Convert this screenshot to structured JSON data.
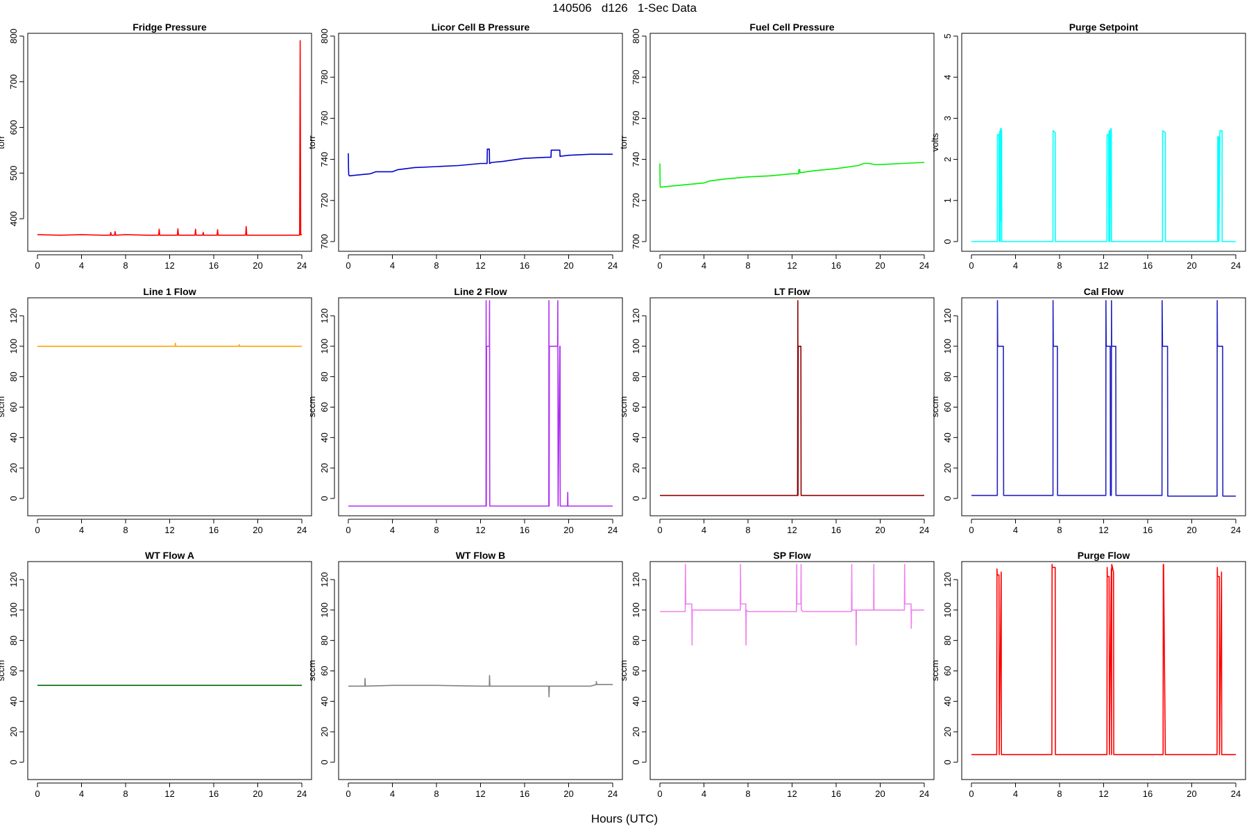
{
  "figure": {
    "title": "140506   d126   1-Sec Data",
    "xlabel": "Hours (UTC)"
  },
  "chart_data": [
    {
      "type": "line",
      "title": "Fridge Pressure",
      "ylabel": "torr",
      "color": "#ff0000",
      "xlim": [
        0,
        24
      ],
      "ylim": [
        350,
        800
      ],
      "xticks": [
        0,
        4,
        8,
        12,
        16,
        20,
        24
      ],
      "yticks": [
        400,
        500,
        600,
        700,
        800
      ],
      "x": [
        0,
        2,
        4,
        6,
        6.6,
        6.65,
        6.7,
        7,
        7.05,
        7.1,
        8,
        10,
        11,
        11.05,
        11.1,
        12,
        12.7,
        12.75,
        12.8,
        14,
        14.3,
        14.35,
        14.4,
        15,
        15.05,
        15.1,
        16,
        16.3,
        16.35,
        16.4,
        18,
        18.9,
        18.95,
        19,
        22,
        23.8,
        23.85,
        23.9,
        24
      ],
      "y": [
        365,
        364,
        365,
        364,
        364,
        370,
        364,
        364,
        372,
        364,
        365,
        364,
        364,
        377,
        364,
        364,
        364,
        378,
        364,
        364,
        364,
        377,
        364,
        364,
        370,
        364,
        364,
        364,
        376,
        364,
        364,
        364,
        383,
        364,
        364,
        364,
        790,
        365,
        365
      ]
    },
    {
      "type": "line",
      "title": "Licor Cell B Pressure",
      "ylabel": "torr",
      "color": "#0000cc",
      "xlim": [
        0,
        24
      ],
      "ylim": [
        700,
        800
      ],
      "xticks": [
        0,
        4,
        8,
        12,
        16,
        20,
        24
      ],
      "yticks": [
        700,
        720,
        740,
        760,
        780,
        800
      ],
      "x": [
        0,
        0.02,
        0.04,
        0.1,
        2,
        2.5,
        4,
        4.5,
        6,
        8,
        10,
        12,
        12.6,
        12.62,
        12.64,
        12.8,
        12.82,
        13,
        14,
        16,
        18,
        18.4,
        18.42,
        19.2,
        19.22,
        20,
        22,
        24
      ],
      "y": [
        743,
        735,
        732.5,
        732,
        733,
        734,
        734,
        735,
        736,
        736.5,
        737,
        738,
        738,
        745,
        745,
        745,
        738,
        738.5,
        739,
        740.5,
        741,
        741,
        744.5,
        744.5,
        741.5,
        742,
        742.5,
        742.5
      ]
    },
    {
      "type": "line",
      "title": "Fuel Cell Pressure",
      "ylabel": "torr",
      "color": "#00ee00",
      "xlim": [
        0,
        24
      ],
      "ylim": [
        700,
        800
      ],
      "xticks": [
        0,
        4,
        8,
        12,
        16,
        20,
        24
      ],
      "yticks": [
        700,
        720,
        740,
        760,
        780,
        800
      ],
      "x": [
        0,
        0.02,
        0.04,
        0.1,
        2,
        4,
        4.5,
        6,
        8,
        10,
        12,
        12.6,
        12.62,
        12.7,
        12.72,
        14,
        16,
        18,
        18.5,
        19,
        19.5,
        20,
        22,
        24
      ],
      "y": [
        738,
        728,
        726.5,
        726.5,
        727.5,
        728.5,
        729.5,
        730.5,
        731.5,
        732,
        733,
        733,
        735,
        735,
        733.5,
        734.5,
        735.5,
        737,
        738,
        738,
        737.5,
        737.5,
        738,
        738.5
      ]
    },
    {
      "type": "line",
      "title": "Purge Setpoint",
      "ylabel": "volts",
      "color": "#00ffff",
      "xlim": [
        0,
        24
      ],
      "ylim": [
        0,
        5
      ],
      "xticks": [
        0,
        4,
        8,
        12,
        16,
        20,
        24
      ],
      "yticks": [
        0,
        1,
        2,
        3,
        4,
        5
      ],
      "x": [
        0,
        2.35,
        2.36,
        2.5,
        2.52,
        2.56,
        2.6,
        2.62,
        2.64,
        2.7,
        2.72,
        2.74,
        2.75,
        7.4,
        7.41,
        7.6,
        7.61,
        12.3,
        12.31,
        12.45,
        12.47,
        12.5,
        12.55,
        12.57,
        12.65,
        12.67,
        12.7,
        12.71,
        17.35,
        17.36,
        17.6,
        17.61,
        22.35,
        22.36,
        22.45,
        22.47,
        22.55,
        22.57,
        22.75,
        22.76,
        24
      ],
      "y": [
        0,
        0,
        2.6,
        2.6,
        0,
        2.65,
        2.7,
        0,
        2.75,
        2.75,
        0.5,
        2.7,
        0,
        0,
        2.7,
        2.65,
        0,
        0,
        2.6,
        2.6,
        0,
        2.7,
        2.7,
        0,
        2.75,
        2.75,
        2.7,
        0,
        0,
        2.7,
        2.65,
        0,
        0,
        2.55,
        2.55,
        0,
        2.6,
        2.7,
        2.7,
        0,
        0
      ]
    },
    {
      "type": "line",
      "title": "Line 1 Flow",
      "ylabel": "sccm",
      "color": "#ffa500",
      "xlim": [
        0,
        24
      ],
      "ylim": [
        -5,
        130
      ],
      "xticks": [
        0,
        4,
        8,
        12,
        16,
        20,
        24
      ],
      "yticks": [
        0,
        20,
        40,
        60,
        80,
        100,
        120
      ],
      "x": [
        0,
        4,
        8,
        12,
        12.5,
        12.52,
        12.55,
        14,
        18,
        18.3,
        18.32,
        18.35,
        20,
        24
      ],
      "y": [
        100,
        100,
        100,
        100,
        100,
        102,
        100,
        100,
        100,
        100,
        101,
        100,
        100,
        100
      ]
    },
    {
      "type": "line",
      "title": "Line 2 Flow",
      "ylabel": "sccm",
      "color": "#b030f0",
      "xlim": [
        0,
        24
      ],
      "ylim": [
        -5,
        130
      ],
      "xticks": [
        0,
        4,
        8,
        12,
        16,
        20,
        24
      ],
      "yticks": [
        0,
        20,
        40,
        60,
        80,
        100,
        120
      ],
      "x": [
        0,
        12.5,
        12.51,
        12.53,
        12.55,
        12.8,
        12.82,
        12.84,
        13,
        18.2,
        18.21,
        18.23,
        18.25,
        19,
        19.02,
        19.04,
        19.2,
        19.22,
        19.24,
        19.9,
        19.92,
        19.94,
        24
      ],
      "y": [
        -5,
        -5,
        130,
        -5,
        100,
        100,
        130,
        -5,
        -5,
        -5,
        130,
        -5,
        100,
        100,
        130,
        -5,
        100,
        100,
        -5,
        -5,
        4,
        -5,
        -5
      ]
    },
    {
      "type": "line",
      "title": "LT Flow",
      "ylabel": "sccm",
      "color": "#8b0000",
      "xlim": [
        0,
        24
      ],
      "ylim": [
        -5,
        130
      ],
      "xticks": [
        0,
        4,
        8,
        12,
        16,
        20,
        24
      ],
      "yticks": [
        0,
        20,
        40,
        60,
        80,
        100,
        120
      ],
      "x": [
        0,
        12.5,
        12.52,
        12.54,
        12.56,
        12.8,
        12.82,
        13,
        20,
        24
      ],
      "y": [
        2,
        2,
        130,
        2,
        100,
        100,
        2,
        2,
        2,
        2
      ]
    },
    {
      "type": "line",
      "title": "Cal Flow",
      "ylabel": "sccm",
      "color": "#2020c0",
      "xlim": [
        0,
        24
      ],
      "ylim": [
        -5,
        130
      ],
      "xticks": [
        0,
        4,
        8,
        12,
        16,
        20,
        24
      ],
      "yticks": [
        0,
        20,
        40,
        60,
        80,
        100,
        120
      ],
      "x": [
        0,
        2.35,
        2.36,
        2.38,
        2.4,
        2.9,
        2.92,
        3,
        7.4,
        7.41,
        7.43,
        7.45,
        7.8,
        7.82,
        7.9,
        12.2,
        12.21,
        12.23,
        12.25,
        12.6,
        12.62,
        12.7,
        12.71,
        12.73,
        12.75,
        13.1,
        13.12,
        13.3,
        17.3,
        17.31,
        17.35,
        17.4,
        17.8,
        17.82,
        18,
        22.3,
        22.31,
        22.33,
        22.35,
        22.8,
        22.82,
        23,
        24
      ],
      "y": [
        2,
        2,
        130,
        102,
        100,
        100,
        2,
        2,
        2,
        130,
        100,
        100,
        100,
        2,
        2,
        2,
        130,
        102,
        100,
        100,
        2,
        2,
        130,
        100,
        100,
        100,
        2,
        2,
        2,
        130,
        100,
        100,
        100,
        1.5,
        1.5,
        1.5,
        130,
        102,
        100,
        100,
        1.5,
        1.5,
        1.5
      ]
    },
    {
      "type": "line",
      "title": "WT Flow A",
      "ylabel": "sccm",
      "color": "#006400",
      "xlim": [
        0,
        24
      ],
      "ylim": [
        -5,
        130
      ],
      "xticks": [
        0,
        4,
        8,
        12,
        16,
        20,
        24
      ],
      "yticks": [
        0,
        20,
        40,
        60,
        80,
        100,
        120
      ],
      "x": [
        0,
        4,
        8,
        12,
        16,
        20,
        24
      ],
      "y": [
        50.5,
        50.5,
        50.5,
        50.5,
        50.5,
        50.5,
        50.5
      ]
    },
    {
      "type": "line",
      "title": "WT Flow B",
      "ylabel": "sccm",
      "color": "#808080",
      "xlim": [
        0,
        24
      ],
      "ylim": [
        -5,
        130
      ],
      "xticks": [
        0,
        4,
        8,
        12,
        16,
        20,
        24
      ],
      "yticks": [
        0,
        20,
        40,
        60,
        80,
        100,
        120
      ],
      "x": [
        0,
        1,
        1.5,
        1.52,
        1.55,
        4,
        8,
        12,
        12.8,
        12.82,
        12.85,
        16,
        18,
        18.2,
        18.22,
        18.25,
        20,
        22,
        22.5,
        22.52,
        22.55,
        24
      ],
      "y": [
        50,
        50,
        50,
        55,
        50,
        50.5,
        50.5,
        50,
        50,
        57,
        50,
        50,
        50,
        50,
        43,
        50,
        50,
        50,
        51,
        53,
        51,
        51
      ]
    },
    {
      "type": "line",
      "title": "SP Flow",
      "ylabel": "sccm",
      "color": "#ee82ee",
      "xlim": [
        0,
        24
      ],
      "ylim": [
        -5,
        130
      ],
      "xticks": [
        0,
        4,
        8,
        12,
        16,
        20,
        24
      ],
      "yticks": [
        0,
        20,
        40,
        60,
        80,
        100,
        120
      ],
      "x": [
        0,
        2,
        2.3,
        2.32,
        2.35,
        2.5,
        2.9,
        2.92,
        2.94,
        3,
        7.3,
        7.32,
        7.34,
        7.5,
        7.8,
        7.82,
        7.84,
        8,
        12.4,
        12.42,
        12.44,
        12.6,
        12.8,
        12.82,
        12.84,
        13,
        17.4,
        17.42,
        17.44,
        17.6,
        17.8,
        17.82,
        17.84,
        18,
        19.4,
        19.42,
        19.44,
        19.6,
        20,
        22.2,
        22.22,
        22.24,
        22.5,
        22.8,
        22.82,
        22.84,
        23,
        24
      ],
      "y": [
        99,
        99,
        99,
        130,
        104,
        104,
        104,
        77,
        100,
        100,
        100,
        130,
        104,
        104,
        104,
        77,
        100,
        99,
        99,
        130,
        104,
        104,
        104,
        130,
        100,
        99,
        99,
        130,
        100,
        100,
        100,
        77,
        100,
        100,
        100,
        130,
        100,
        100,
        100,
        100,
        130,
        104,
        104,
        104,
        88,
        100,
        100,
        100
      ]
    },
    {
      "type": "line",
      "title": "Purge Flow",
      "ylabel": "sccm",
      "color": "#ff0000",
      "xlim": [
        0,
        24
      ],
      "ylim": [
        -5,
        130
      ],
      "xticks": [
        0,
        4,
        8,
        12,
        16,
        20,
        24
      ],
      "yticks": [
        0,
        20,
        40,
        60,
        80,
        100,
        120
      ],
      "x": [
        0,
        2.3,
        2.32,
        2.34,
        2.5,
        2.52,
        2.7,
        2.72,
        7.3,
        7.32,
        7.34,
        7.6,
        7.62,
        12.3,
        12.32,
        12.34,
        12.5,
        12.52,
        12.7,
        12.72,
        12.74,
        12.9,
        12.92,
        17.4,
        17.42,
        17.44,
        17.6,
        17.62,
        22.3,
        22.32,
        22.34,
        22.5,
        22.52,
        22.7,
        22.72,
        24
      ],
      "y": [
        5,
        5,
        127,
        123,
        123,
        5,
        125,
        5,
        5,
        130,
        128,
        128,
        5,
        5,
        128,
        122,
        122,
        5,
        127,
        5,
        130,
        125,
        5,
        5,
        130,
        130,
        5,
        5,
        5,
        128,
        122,
        122,
        5,
        125,
        5,
        5
      ]
    }
  ]
}
